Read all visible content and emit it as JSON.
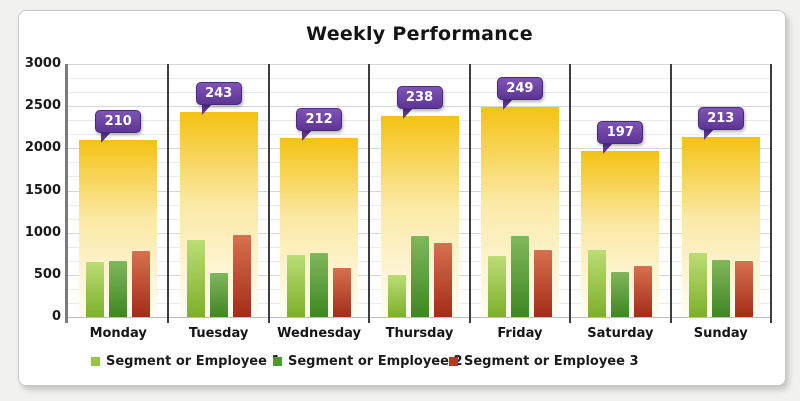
{
  "page": {
    "background": "#f1f1ef"
  },
  "card": {
    "background": "#ffffff",
    "border_color": "#c9c9c9"
  },
  "chart_data": {
    "type": "bar",
    "title": "Weekly Performance",
    "xlabel": "",
    "ylabel": "",
    "categories": [
      "Monday",
      "Tuesday",
      "Wednesday",
      "Thursday",
      "Friday",
      "Saturday",
      "Sunday"
    ],
    "ylim": [
      0,
      3000
    ],
    "yticks": [
      0,
      500,
      1000,
      1500,
      2000,
      2500,
      3000
    ],
    "grid": true,
    "legend_position": "bottom",
    "callouts": {
      "values": [
        210,
        243,
        212,
        238,
        249,
        197,
        213
      ],
      "bubble_color": "#6a3fa0",
      "text_color": "#ffffff"
    },
    "background_bars": {
      "name": "Daily total band",
      "values": [
        2100,
        2430,
        2120,
        2380,
        2490,
        1970,
        2130
      ],
      "color_top": "#f4c213",
      "color_mid": "#fbe9a6",
      "color_bottom": "#fffdf4"
    },
    "series": [
      {
        "name": "Segment or Employee 1",
        "legend_color": "#94c83d",
        "color_top": "#bcdd75",
        "color_bottom": "#7cb02a",
        "values": [
          650,
          910,
          730,
          500,
          720,
          800,
          760
        ]
      },
      {
        "name": "Segment or Employee 2",
        "legend_color": "#4f9a2e",
        "color_top": "#81b75c",
        "color_bottom": "#3e8722",
        "values": [
          660,
          520,
          760,
          960,
          960,
          530,
          680
        ]
      },
      {
        "name": "Segment or Employee 3",
        "legend_color": "#b23a20",
        "color_top": "#d6714f",
        "color_bottom": "#a42c18",
        "values": [
          780,
          970,
          580,
          880,
          790,
          610,
          660
        ]
      }
    ]
  }
}
